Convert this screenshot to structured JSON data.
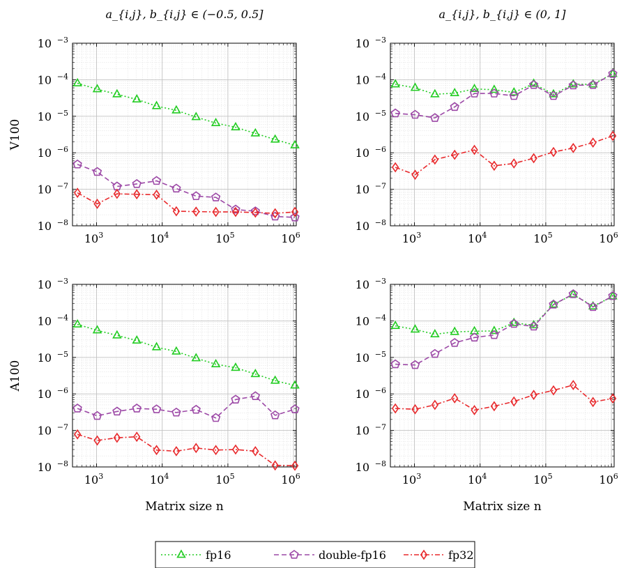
{
  "chart_data": [
    {
      "type": "line",
      "title": "a_{i,j}, b_{i,j} ∈ (−0.5, 0.5]",
      "row_label": "V100",
      "xlabel": "",
      "x_scale": "log",
      "y_scale": "log",
      "xlim": [
        430,
        1100000
      ],
      "ylim": [
        1e-08,
        0.001
      ],
      "x": [
        512,
        1024,
        2048,
        4096,
        8192,
        16384,
        32768,
        65536,
        131072,
        262144,
        524288,
        1048576
      ],
      "series": [
        {
          "name": "fp16",
          "values": [
            8e-05,
            5.5e-05,
            4e-05,
            2.9e-05,
            1.9e-05,
            1.45e-05,
            9.5e-06,
            6.5e-06,
            5e-06,
            3.4e-06,
            2.3e-06,
            1.6e-06
          ]
        },
        {
          "name": "double-fp16",
          "values": [
            4.8e-07,
            3e-07,
            1.2e-07,
            1.4e-07,
            1.7e-07,
            1.05e-07,
            6.5e-08,
            6e-08,
            2.8e-08,
            2.5e-08,
            1.8e-08,
            1.7e-08
          ]
        },
        {
          "name": "fp32",
          "values": [
            8e-08,
            4e-08,
            7.5e-08,
            7.3e-08,
            7.1e-08,
            2.5e-08,
            2.45e-08,
            2.4e-08,
            2.4e-08,
            2.3e-08,
            2.2e-08,
            2.4e-08
          ]
        }
      ]
    },
    {
      "type": "line",
      "title": "a_{i,j}, b_{i,j} ∈ (0, 1]",
      "row_label": "",
      "xlabel": "",
      "x_scale": "log",
      "y_scale": "log",
      "xlim": [
        430,
        1100000
      ],
      "ylim": [
        1e-08,
        0.001
      ],
      "x": [
        512,
        1024,
        2048,
        4096,
        8192,
        16384,
        32768,
        65536,
        131072,
        262144,
        524288,
        1048576
      ],
      "series": [
        {
          "name": "fp16",
          "values": [
            7.5e-05,
            6e-05,
            4e-05,
            4.3e-05,
            5.6e-05,
            5.3e-05,
            4.5e-05,
            7.8e-05,
            4e-05,
            7.5e-05,
            7.5e-05,
            0.000145
          ]
        },
        {
          "name": "double-fp16",
          "values": [
            1.2e-05,
            1.1e-05,
            9e-06,
            1.8e-05,
            4.2e-05,
            4.2e-05,
            3.6e-05,
            7.2e-05,
            3.6e-05,
            7e-05,
            7.2e-05,
            0.000145
          ]
        },
        {
          "name": "fp32",
          "values": [
            4e-07,
            2.5e-07,
            6.5e-07,
            8.8e-07,
            1.2e-06,
            4.4e-07,
            5.1e-07,
            7.1e-07,
            1.05e-06,
            1.35e-06,
            1.9e-06,
            2.9e-06
          ]
        }
      ]
    },
    {
      "type": "line",
      "title": "",
      "row_label": "A100",
      "xlabel": "Matrix size n",
      "x_scale": "log",
      "y_scale": "log",
      "xlim": [
        430,
        1100000
      ],
      "ylim": [
        1e-08,
        0.001
      ],
      "x": [
        512,
        1024,
        2048,
        4096,
        8192,
        16384,
        32768,
        65536,
        131072,
        262144,
        524288,
        1048576
      ],
      "series": [
        {
          "name": "fp16",
          "values": [
            8e-05,
            5.5e-05,
            4e-05,
            2.9e-05,
            1.9e-05,
            1.45e-05,
            9.5e-06,
            6.5e-06,
            5.2e-06,
            3.5e-06,
            2.3e-06,
            1.7e-06
          ]
        },
        {
          "name": "double-fp16",
          "values": [
            4e-07,
            2.5e-07,
            3.3e-07,
            4e-07,
            3.8e-07,
            3.1e-07,
            3.7e-07,
            2.2e-07,
            7e-07,
            8.7e-07,
            2.6e-07,
            3.8e-07
          ]
        },
        {
          "name": "fp32",
          "values": [
            7.8e-08,
            5.3e-08,
            6.3e-08,
            6.7e-08,
            2.9e-08,
            2.7e-08,
            3.3e-08,
            2.9e-08,
            3e-08,
            2.7e-08,
            1.1e-08,
            1.08e-08
          ]
        }
      ]
    },
    {
      "type": "line",
      "title": "",
      "row_label": "",
      "xlabel": "Matrix size n",
      "x_scale": "log",
      "y_scale": "log",
      "xlim": [
        430,
        1100000
      ],
      "ylim": [
        1e-08,
        0.001
      ],
      "x": [
        512,
        1024,
        2048,
        4096,
        8192,
        16384,
        32768,
        65536,
        131072,
        262144,
        524288,
        1048576
      ],
      "series": [
        {
          "name": "fp16",
          "values": [
            7.3e-05,
            5.8e-05,
            4.3e-05,
            5e-05,
            5.2e-05,
            5.3e-05,
            8.8e-05,
            7.6e-05,
            0.00028,
            0.00053,
            0.00025,
            0.00047
          ]
        },
        {
          "name": "double-fp16",
          "values": [
            6.5e-06,
            6.2e-06,
            1.25e-05,
            2.5e-05,
            3.5e-05,
            4.1e-05,
            8.3e-05,
            7e-05,
            0.00028,
            0.00054,
            0.00024,
            0.00048
          ]
        },
        {
          "name": "fp32",
          "values": [
            4e-07,
            3.8e-07,
            5e-07,
            7.6e-07,
            3.6e-07,
            4.6e-07,
            6.2e-07,
            9.4e-07,
            1.25e-06,
            1.75e-06,
            6e-07,
            7.5e-07
          ]
        }
      ]
    }
  ],
  "legend": {
    "placement": "bottom-center",
    "items": [
      {
        "name": "fp16",
        "color": "#22cc22",
        "marker": "triangle",
        "dash": "dotted"
      },
      {
        "name": "double-fp16",
        "color": "#9c48a6",
        "marker": "pentagon",
        "dash": "dashed"
      },
      {
        "name": "fp32",
        "color": "#e8292c",
        "marker": "diamond",
        "dash": "dash-dot"
      }
    ]
  },
  "x_ticks": [
    {
      "base": "10",
      "exp": "3",
      "value": 1000
    },
    {
      "base": "10",
      "exp": "4",
      "value": 10000
    },
    {
      "base": "10",
      "exp": "5",
      "value": 100000
    },
    {
      "base": "10",
      "exp": "6",
      "value": 1000000
    }
  ],
  "y_ticks": [
    {
      "base": "10",
      "exp": "−3",
      "value": 0.001
    },
    {
      "base": "10",
      "exp": "−4",
      "value": 0.0001
    },
    {
      "base": "10",
      "exp": "−5",
      "value": 1e-05
    },
    {
      "base": "10",
      "exp": "−6",
      "value": 1e-06
    },
    {
      "base": "10",
      "exp": "−7",
      "value": 1e-07
    },
    {
      "base": "10",
      "exp": "−8",
      "value": 1e-08
    }
  ],
  "grid": "major and minor"
}
